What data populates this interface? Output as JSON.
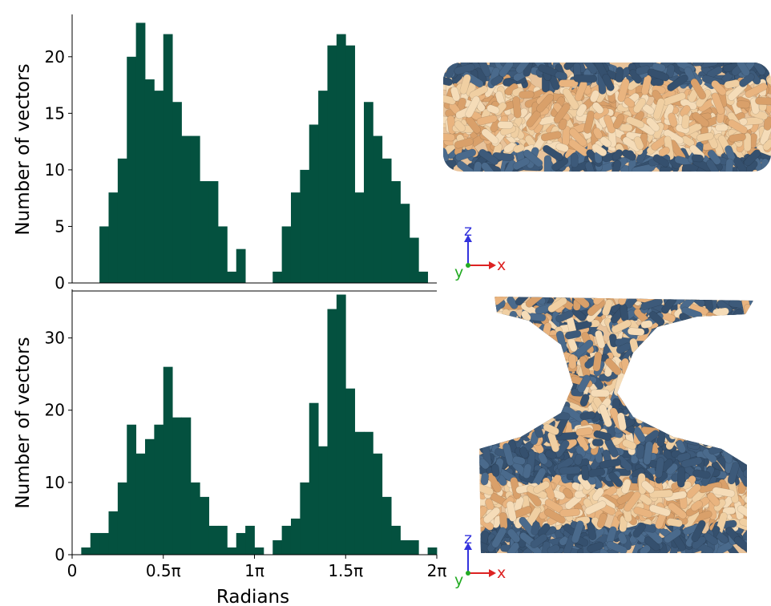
{
  "chart_data": [
    {
      "type": "histogram",
      "y_label": "Number of vectors",
      "color": "#04513f",
      "bins": [
        0,
        0.1571,
        0.3142,
        0.4712,
        0.6283,
        0.7854,
        0.9425,
        1.0996,
        1.2566,
        1.4137,
        1.5708,
        1.7279,
        1.885,
        2.042,
        2.1991,
        2.3562,
        2.5133,
        2.6704,
        2.8274,
        2.9845,
        3.1416,
        3.2987,
        3.4558,
        3.6128,
        3.7699,
        3.927,
        4.0841,
        4.2412,
        4.3982,
        4.5553,
        4.7124,
        4.8695,
        5.0265,
        5.1836,
        5.3407,
        5.4978,
        5.6549,
        5.8119,
        5.969,
        6.1261,
        6.2832
      ],
      "values": [
        0,
        0,
        0,
        5,
        8,
        11,
        20,
        23,
        18,
        17,
        22,
        16,
        13,
        13,
        9,
        9,
        5,
        1,
        3,
        0,
        0,
        0,
        1,
        5,
        8,
        10,
        14,
        17,
        21,
        22,
        21,
        8,
        16,
        13,
        11,
        9,
        7,
        4,
        1,
        0
      ],
      "xlim": [
        0,
        6.2832
      ],
      "ylim": [
        0,
        23.6
      ],
      "yticks": [
        0,
        5,
        10,
        15,
        20
      ]
    },
    {
      "type": "histogram",
      "x_label": "Radians",
      "y_label": "Number of vectors",
      "color": "#04513f",
      "bins": [
        0,
        0.1571,
        0.3142,
        0.4712,
        0.6283,
        0.7854,
        0.9425,
        1.0996,
        1.2566,
        1.4137,
        1.5708,
        1.7279,
        1.885,
        2.042,
        2.1991,
        2.3562,
        2.5133,
        2.6704,
        2.8274,
        2.9845,
        3.1416,
        3.2987,
        3.4558,
        3.6128,
        3.7699,
        3.927,
        4.0841,
        4.2412,
        4.3982,
        4.5553,
        4.7124,
        4.8695,
        5.0265,
        5.1836,
        5.3407,
        5.4978,
        5.6549,
        5.8119,
        5.969,
        6.1261,
        6.2832
      ],
      "values": [
        0,
        1,
        3,
        3,
        6,
        10,
        18,
        14,
        16,
        18,
        26,
        19,
        19,
        10,
        8,
        4,
        4,
        1,
        3,
        4,
        1,
        0,
        2,
        4,
        5,
        10,
        21,
        15,
        34,
        36,
        23,
        17,
        17,
        14,
        8,
        4,
        2,
        2,
        0,
        1
      ],
      "xlim": [
        0,
        6.2832
      ],
      "ylim": [
        0,
        36.5
      ],
      "yticks": [
        0,
        10,
        20,
        30
      ],
      "xticks": [
        0,
        {
          "value": 1.5708,
          "label": "0.5π"
        },
        {
          "value": 3.1416,
          "label": "1π"
        },
        {
          "value": 4.7124,
          "label": "1.5π"
        },
        {
          "value": 6.2832,
          "label": "2π"
        }
      ]
    }
  ],
  "insets": [
    {
      "z": "z",
      "x": "x",
      "y": "y"
    },
    {
      "z": "z",
      "x": "x",
      "y": "y"
    }
  ]
}
